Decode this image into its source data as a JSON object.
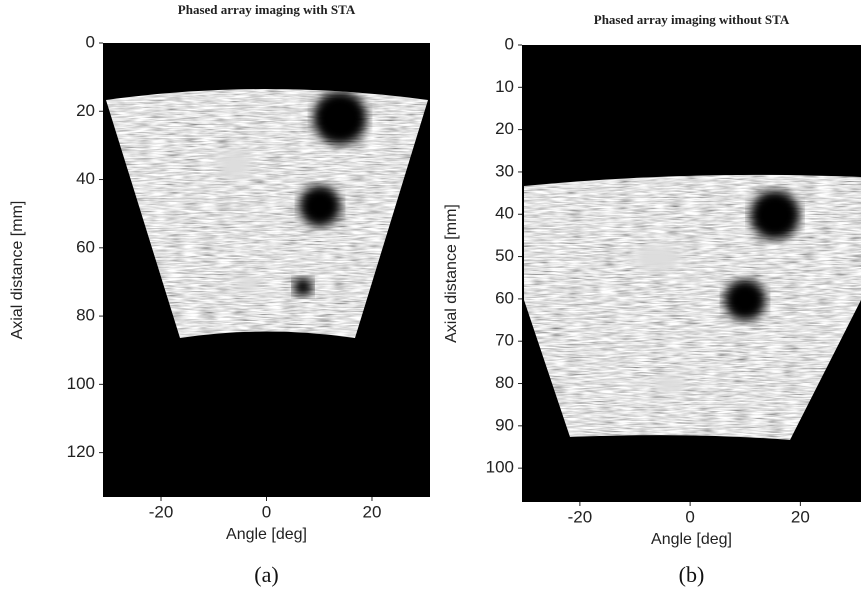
{
  "chart_data": [
    {
      "type": "image",
      "title": "Phased array imaging with STA",
      "x_label": "Angle [deg]",
      "y_label": "Axial distance [mm]",
      "xlim": [
        -31,
        31
      ],
      "xticks": [
        -20,
        0,
        20
      ],
      "ylim": [
        0,
        133
      ],
      "yticks": [
        0,
        20,
        40,
        60,
        80,
        100,
        120
      ],
      "caption": "(a)"
    },
    {
      "type": "image",
      "title": "Phased array imaging without STA",
      "x_label": "Angle [deg]",
      "y_label": "Axial distance [mm]",
      "xlim": [
        -30.5,
        31
      ],
      "xticks": [
        -20,
        0,
        20
      ],
      "ylim": [
        0,
        108
      ],
      "yticks": [
        0,
        10,
        20,
        30,
        40,
        50,
        60,
        70,
        80,
        90,
        100
      ],
      "caption": "(b)"
    }
  ]
}
